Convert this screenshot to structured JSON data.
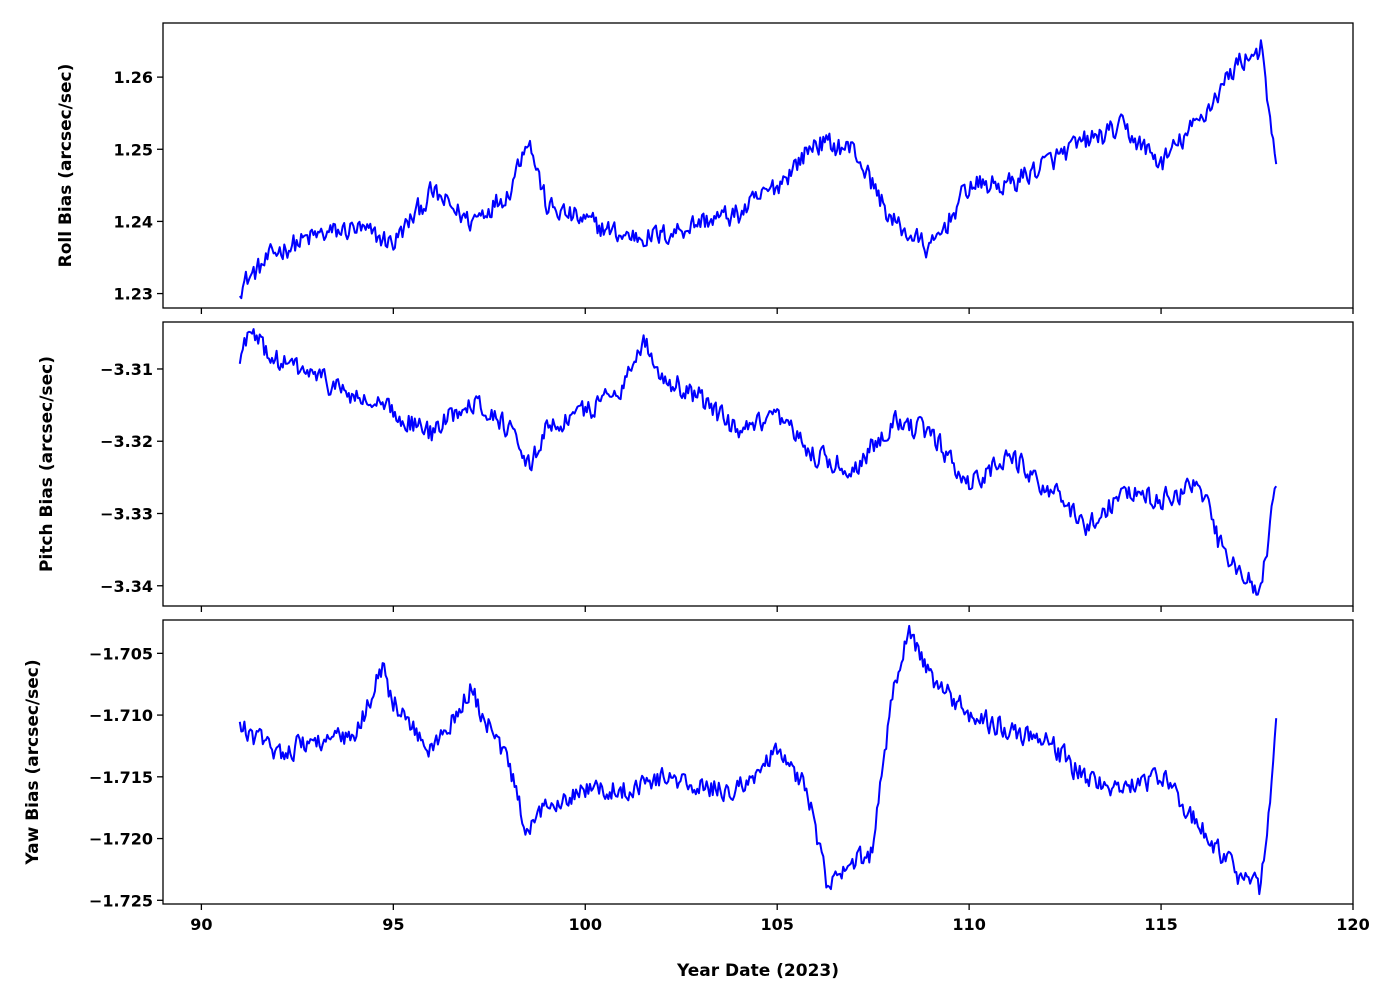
{
  "chart_data": [
    {
      "type": "line",
      "ylabel": "Roll Bias (arcsec/sec)",
      "xlim": [
        89,
        120
      ],
      "ylim": [
        1.228,
        1.2675
      ],
      "yticks": [
        1.23,
        1.24,
        1.25,
        1.26
      ],
      "ytick_labels": [
        "1.23",
        "1.24",
        "1.25",
        "1.26"
      ],
      "xticks": [
        90,
        95,
        100,
        105,
        110,
        115,
        120
      ],
      "show_xtick_labels": false,
      "grid": false,
      "color": "#0000ff",
      "x": [
        91.0,
        92.0,
        93.0,
        94.0,
        95.0,
        96.0,
        97.0,
        98.0,
        98.5,
        99.0,
        100.0,
        101.0,
        102.0,
        103.0,
        104.0,
        105.0,
        106.0,
        107.0,
        108.0,
        109.0,
        110.0,
        111.0,
        112.0,
        113.0,
        114.0,
        115.0,
        116.0,
        117.0,
        117.6,
        118.0
      ],
      "y": [
        1.231,
        1.236,
        1.238,
        1.239,
        1.237,
        1.244,
        1.24,
        1.244,
        1.252,
        1.242,
        1.24,
        1.238,
        1.238,
        1.24,
        1.241,
        1.245,
        1.251,
        1.25,
        1.24,
        1.236,
        1.245,
        1.245,
        1.248,
        1.251,
        1.253,
        1.248,
        1.254,
        1.262,
        1.264,
        1.247
      ]
    },
    {
      "type": "line",
      "ylabel": "Pitch Bias (arcsec/sec)",
      "xlim": [
        89,
        120
      ],
      "ylim": [
        -3.3428,
        -3.3035
      ],
      "yticks": [
        -3.31,
        -3.32,
        -3.33,
        -3.34
      ],
      "ytick_labels": [
        "−3.31",
        "−3.32",
        "−3.33",
        "−3.34"
      ],
      "xticks": [
        90,
        95,
        100,
        105,
        110,
        115,
        120
      ],
      "show_xtick_labels": false,
      "grid": false,
      "color": "#0000ff",
      "x": [
        91.0,
        91.2,
        92.0,
        93.0,
        94.0,
        95.0,
        96.0,
        97.0,
        98.0,
        98.5,
        99.0,
        100.0,
        101.0,
        101.5,
        102.0,
        103.0,
        104.0,
        105.0,
        106.0,
        107.0,
        108.0,
        109.0,
        110.0,
        111.0,
        112.0,
        113.0,
        114.0,
        115.0,
        116.0,
        116.5,
        117.0,
        117.6,
        118.0
      ],
      "y": [
        -3.309,
        -3.305,
        -3.309,
        -3.311,
        -3.314,
        -3.316,
        -3.319,
        -3.314,
        -3.318,
        -3.324,
        -3.318,
        -3.316,
        -3.312,
        -3.306,
        -3.311,
        -3.314,
        -3.319,
        -3.317,
        -3.322,
        -3.324,
        -3.317,
        -3.319,
        -3.326,
        -3.322,
        -3.326,
        -3.332,
        -3.327,
        -3.328,
        -3.326,
        -3.334,
        -3.338,
        -3.341,
        -3.326
      ]
    },
    {
      "type": "line",
      "ylabel": "Yaw Bias (arcsec/sec)",
      "xlabel": "Year Date (2023)",
      "xlim": [
        89,
        120
      ],
      "ylim": [
        -1.7253,
        -1.7023
      ],
      "yticks": [
        -1.705,
        -1.71,
        -1.715,
        -1.72,
        -1.725
      ],
      "ytick_labels": [
        "−1.705",
        "−1.710",
        "−1.715",
        "−1.720",
        "−1.725"
      ],
      "xticks": [
        90,
        95,
        100,
        105,
        110,
        115,
        120
      ],
      "xtick_labels": [
        "90",
        "95",
        "100",
        "105",
        "110",
        "115",
        "120"
      ],
      "show_xtick_labels": true,
      "grid": false,
      "color": "#0000ff",
      "x": [
        91.0,
        92.0,
        93.0,
        94.0,
        94.7,
        95.0,
        96.0,
        97.0,
        98.0,
        98.5,
        99.0,
        100.0,
        101.0,
        102.0,
        103.0,
        104.0,
        105.0,
        105.8,
        106.3,
        107.0,
        107.5,
        108.0,
        108.4,
        109.0,
        110.0,
        111.0,
        112.0,
        113.0,
        114.0,
        115.0,
        116.0,
        117.0,
        117.6,
        118.0
      ],
      "y": [
        -1.711,
        -1.713,
        -1.712,
        -1.712,
        -1.706,
        -1.709,
        -1.713,
        -1.708,
        -1.714,
        -1.72,
        -1.717,
        -1.716,
        -1.716,
        -1.715,
        -1.716,
        -1.716,
        -1.713,
        -1.716,
        -1.724,
        -1.722,
        -1.721,
        -1.708,
        -1.703,
        -1.707,
        -1.71,
        -1.711,
        -1.712,
        -1.715,
        -1.716,
        -1.715,
        -1.719,
        -1.723,
        -1.724,
        -1.711
      ]
    }
  ]
}
